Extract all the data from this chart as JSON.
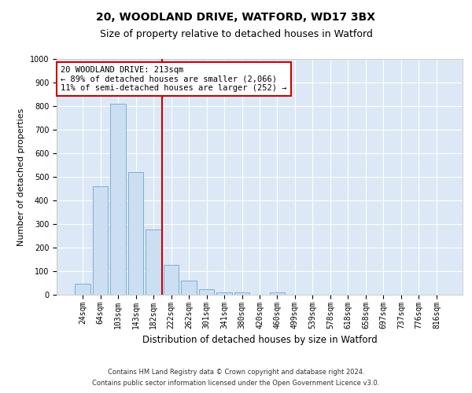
{
  "title_line1": "20, WOODLAND DRIVE, WATFORD, WD17 3BX",
  "title_line2": "Size of property relative to detached houses in Watford",
  "xlabel": "Distribution of detached houses by size in Watford",
  "ylabel": "Number of detached properties",
  "categories": [
    "24sqm",
    "64sqm",
    "103sqm",
    "143sqm",
    "182sqm",
    "222sqm",
    "262sqm",
    "301sqm",
    "341sqm",
    "380sqm",
    "420sqm",
    "460sqm",
    "499sqm",
    "539sqm",
    "578sqm",
    "618sqm",
    "658sqm",
    "697sqm",
    "737sqm",
    "776sqm",
    "816sqm"
  ],
  "bar_values": [
    47,
    460,
    810,
    520,
    278,
    128,
    60,
    22,
    10,
    10,
    0,
    10,
    0,
    0,
    0,
    0,
    0,
    0,
    0,
    0,
    0
  ],
  "bar_color": "#ccdff2",
  "bar_edge_color": "#7bafd4",
  "vline_index": 5,
  "vline_color": "#cc0000",
  "annotation_text": "20 WOODLAND DRIVE: 213sqm\n← 89% of detached houses are smaller (2,066)\n11% of semi-detached houses are larger (252) →",
  "annotation_box_color": "#ffffff",
  "annotation_border_color": "#cc0000",
  "ylim": [
    0,
    1000
  ],
  "yticks": [
    0,
    100,
    200,
    300,
    400,
    500,
    600,
    700,
    800,
    900,
    1000
  ],
  "plot_bg_color": "#dce8f5",
  "footer_line1": "Contains HM Land Registry data © Crown copyright and database right 2024.",
  "footer_line2": "Contains public sector information licensed under the Open Government Licence v3.0.",
  "title_fontsize": 10,
  "subtitle_fontsize": 9,
  "tick_fontsize": 7,
  "ylabel_fontsize": 8,
  "xlabel_fontsize": 8.5,
  "annotation_fontsize": 7.5,
  "footer_fontsize": 6
}
